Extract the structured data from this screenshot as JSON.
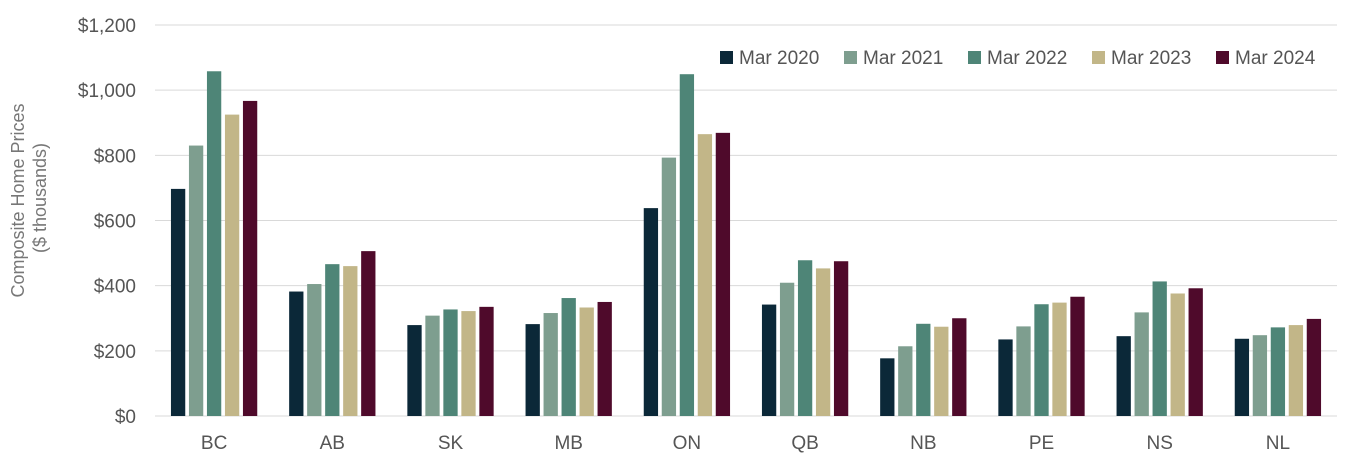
{
  "chart_data": {
    "type": "bar",
    "title": "",
    "xlabel": "",
    "ylabel_line1": "Composite Home Prices",
    "ylabel_line2": "($ thousands)",
    "ylim": [
      0,
      1200
    ],
    "yticks": [
      0,
      200,
      400,
      600,
      800,
      1000,
      1200
    ],
    "ytick_labels": [
      "$0",
      "$200",
      "$400",
      "$600",
      "$800",
      "$1,000",
      "$1,200"
    ],
    "grid": true,
    "legend_position": "top-right",
    "categories": [
      "BC",
      "AB",
      "SK",
      "MB",
      "ON",
      "QB",
      "NB",
      "PE",
      "NS",
      "NL"
    ],
    "series": [
      {
        "name": "Mar 2020",
        "color": "#0b2838",
        "values": [
          697,
          382,
          279,
          282,
          638,
          342,
          177,
          235,
          245,
          237
        ]
      },
      {
        "name": "Mar 2021",
        "color": "#7e9e8f",
        "values": [
          830,
          405,
          308,
          316,
          793,
          409,
          214,
          275,
          318,
          248
        ]
      },
      {
        "name": "Mar 2022",
        "color": "#4e8577",
        "values": [
          1058,
          466,
          327,
          362,
          1049,
          478,
          283,
          343,
          413,
          272
        ]
      },
      {
        "name": "Mar 2023",
        "color": "#c2b688",
        "values": [
          925,
          460,
          322,
          333,
          865,
          453,
          274,
          348,
          376,
          279
        ]
      },
      {
        "name": "Mar 2024",
        "color": "#4f0a2b",
        "values": [
          967,
          506,
          335,
          350,
          869,
          475,
          300,
          366,
          392,
          298
        ]
      }
    ]
  }
}
